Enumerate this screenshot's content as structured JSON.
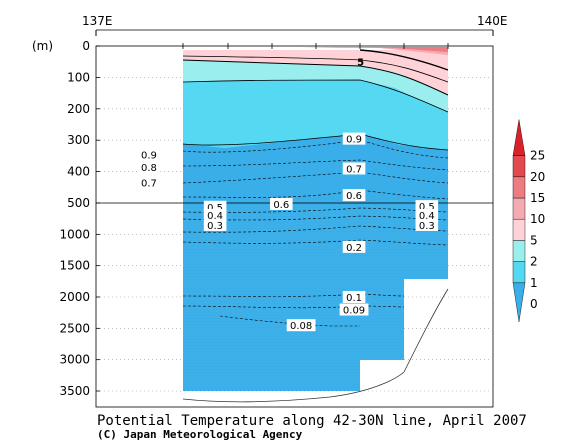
{
  "chart_data": {
    "type": "heatmap",
    "title": "Potential Temperature along 42-30N line, April 2007",
    "credit": "(C) Japan Meteorological Agency",
    "xlabel": "",
    "ylabel": "(m)",
    "x_ticks": [
      "137E",
      "140E"
    ],
    "y_ticks_upper": [
      0,
      100,
      200,
      300,
      400,
      500
    ],
    "y_ticks_lower": [
      1000,
      1500,
      2000,
      2500,
      3000,
      3500
    ],
    "y_break": 500,
    "colorbar": {
      "levels": [
        "0",
        "1",
        "2",
        "5",
        "10",
        "15",
        "20",
        "25"
      ],
      "colors": [
        "#3aaee8",
        "#55d8f2",
        "#9aeeee",
        "#ffd2d8",
        "#f3aab0",
        "#ec7c82",
        "#e24a50",
        "#d82128"
      ]
    },
    "contour_labels": [
      {
        "text": "5",
        "lon": 139.0,
        "depth": 50
      },
      {
        "text": "0.9",
        "lon": 137.4,
        "depth": 345
      },
      {
        "text": "0.8",
        "lon": 137.4,
        "depth": 385
      },
      {
        "text": "0.7",
        "lon": 137.4,
        "depth": 435
      },
      {
        "text": "0.9",
        "lon": 138.95,
        "depth": 295
      },
      {
        "text": "0.7",
        "lon": 138.95,
        "depth": 390
      },
      {
        "text": "0.6",
        "lon": 138.95,
        "depth": 475
      },
      {
        "text": "0.6",
        "lon": 138.4,
        "depth": 515
      },
      {
        "text": "0.5",
        "lon": 137.9,
        "depth": 560
      },
      {
        "text": "0.4",
        "lon": 137.9,
        "depth": 690
      },
      {
        "text": "0.3",
        "lon": 137.9,
        "depth": 850
      },
      {
        "text": "0.5",
        "lon": 139.5,
        "depth": 550
      },
      {
        "text": "0.4",
        "lon": 139.5,
        "depth": 690
      },
      {
        "text": "0.3",
        "lon": 139.5,
        "depth": 850
      },
      {
        "text": "0.2",
        "lon": 138.95,
        "depth": 1200
      },
      {
        "text": "0.1",
        "lon": 138.95,
        "depth": 2000
      },
      {
        "text": "0.09",
        "lon": 138.95,
        "depth": 2200
      },
      {
        "text": "0.08",
        "lon": 138.55,
        "depth": 2450
      }
    ]
  }
}
